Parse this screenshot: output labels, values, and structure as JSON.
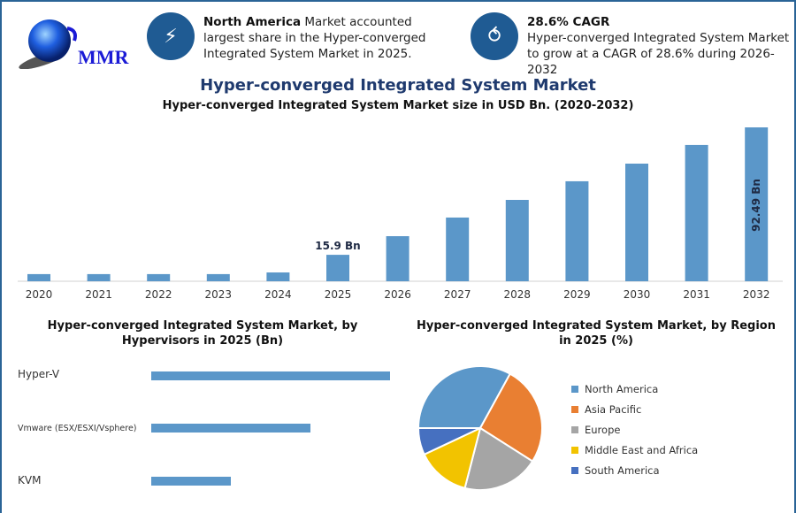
{
  "logo": {
    "text": "MMR"
  },
  "info_cards": [
    {
      "icon": "lightning-icon",
      "bold": "North America",
      "text": " Market accounted largest share in the Hyper-converged Integrated System Market in 2025."
    },
    {
      "icon": "flame-icon",
      "bold": "28.6% CAGR",
      "text": "Hyper-converged Integrated System Market to grow at a CAGR of 28.6% during 2026-2032"
    }
  ],
  "header": {
    "title": "Hyper-converged Integrated System Market"
  },
  "colors": {
    "bar": "#5b97c9",
    "frame": "#2a6496",
    "circle": "#1f5b93",
    "title": "#1f3a6e"
  },
  "chart_data": [
    {
      "type": "bar",
      "title": "Hyper-converged Integrated System Market size in USD Bn. (2020-2032)",
      "categories": [
        "2020",
        "2021",
        "2022",
        "2023",
        "2024",
        "2025",
        "2026",
        "2027",
        "2028",
        "2029",
        "2030",
        "2031",
        "2032"
      ],
      "values": [
        4.3,
        4.3,
        4.3,
        4.3,
        5.3,
        15.9,
        27.1,
        38.3,
        48.9,
        60.1,
        70.7,
        81.9,
        92.49
      ],
      "data_labels": {
        "2025": "15.9 Bn",
        "2032": "92.49 Bn"
      },
      "ylim": [
        0,
        92.49
      ],
      "grid": false
    },
    {
      "type": "bar",
      "orientation": "horizontal",
      "title": "Hyper-converged Integrated System Market, by Hypervisors in 2025 (Bn)",
      "categories": [
        "Hyper-V",
        "Vmware (ESX/ESXI/Vsphere)",
        "KVM"
      ],
      "values": [
        7.95,
        5.3,
        2.65
      ]
    },
    {
      "type": "pie",
      "title": "Hyper-converged Integrated System Market, by Region in 2025 (%)",
      "categories": [
        "North America",
        "Asia Pacific",
        "Europe",
        "Middle East and Africa",
        "South America"
      ],
      "values": [
        33,
        26,
        20,
        14,
        7
      ],
      "colors": [
        "#5b97c9",
        "#e97f32",
        "#a5a5a5",
        "#f2c300",
        "#4670c0"
      ],
      "legend": "right"
    }
  ]
}
